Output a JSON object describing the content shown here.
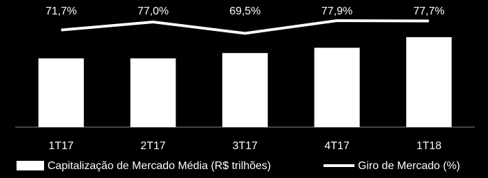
{
  "chart_data": {
    "type": "bar-line",
    "categories": [
      "1T17",
      "2T17",
      "3T17",
      "4T17",
      "1T18"
    ],
    "series": [
      {
        "name": "Capitalização de Mercado Média (R$ trilhões)",
        "type": "bar",
        "color": "#ffffff",
        "values": [
          2.6,
          2.6,
          2.8,
          3.0,
          3.4
        ]
      },
      {
        "name": "Giro de Mercado (%)",
        "type": "line",
        "axis": "y2",
        "color": "#ffffff",
        "values": [
          71.7,
          77.0,
          69.5,
          77.9,
          77.7
        ],
        "value_labels": [
          "71,7%",
          "77,0%",
          "69,5%",
          "77,9%",
          "77,7%"
        ]
      }
    ]
  }
}
